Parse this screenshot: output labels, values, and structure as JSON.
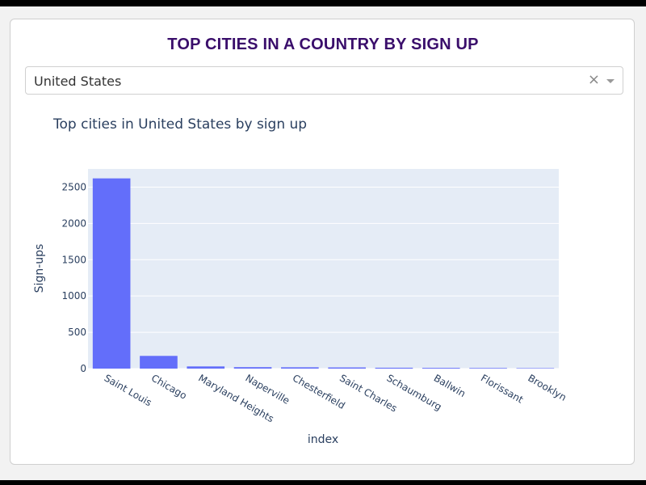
{
  "header": {
    "title": "TOP CITIES IN A COUNTRY BY SIGN UP"
  },
  "country_select": {
    "value": "United States",
    "clear_glyph": "×",
    "icons": [
      "clear-icon",
      "chevron-down-icon"
    ]
  },
  "colors": {
    "title": "#3a0e6b",
    "bar": "#636efa",
    "plot_bg": "#e5ecf6",
    "text": "#2a3f5f"
  },
  "chart_data": {
    "type": "bar",
    "title": "Top cities in United States by sign up",
    "xlabel": "index",
    "ylabel": "Sign-ups",
    "categories": [
      "Saint Louis",
      "Chicago",
      "Maryland Heights",
      "Naperville",
      "Chesterfield",
      "Saint Charles",
      "Schaumburg",
      "Ballwin",
      "Florissant",
      "Brooklyn"
    ],
    "values": [
      2620,
      175,
      30,
      20,
      18,
      16,
      12,
      10,
      8,
      6
    ],
    "yticks": [
      0,
      500,
      1000,
      1500,
      2000,
      2500
    ],
    "ylim": [
      0,
      2750
    ],
    "grid": true,
    "legend": "none"
  }
}
